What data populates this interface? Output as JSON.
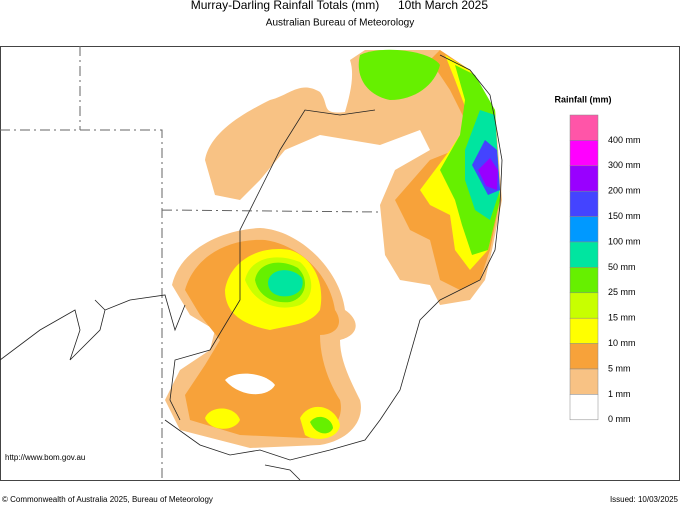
{
  "header": {
    "title": "Murray-Darling Rainfall Totals (mm)",
    "date": "10th March 2025",
    "subtitle": "Australian Bureau of Meteorology"
  },
  "legend": {
    "title": "Rainfall (mm)",
    "items": [
      {
        "label": "400 mm",
        "color": "#ff55a8"
      },
      {
        "label": "300 mm",
        "color": "#ff00ff"
      },
      {
        "label": "200 mm",
        "color": "#9900ff"
      },
      {
        "label": "150 mm",
        "color": "#4444ff"
      },
      {
        "label": "100 mm",
        "color": "#0099ff"
      },
      {
        "label": "50 mm",
        "color": "#00e5a0"
      },
      {
        "label": "25 mm",
        "color": "#66f000"
      },
      {
        "label": "15 mm",
        "color": "#c8ff00"
      },
      {
        "label": "10 mm",
        "color": "#ffff00"
      },
      {
        "label": "5 mm",
        "color": "#f7a23a"
      },
      {
        "label": "1 mm",
        "color": "#f8c284"
      },
      {
        "label": "0 mm",
        "color": "#ffffff"
      }
    ]
  },
  "map": {
    "url": "http://www.bom.gov.au"
  },
  "footer": {
    "copyright": "© Commonwealth of Australia 2025, Bureau of Meteorology",
    "issued": "Issued: 10/03/2025"
  }
}
